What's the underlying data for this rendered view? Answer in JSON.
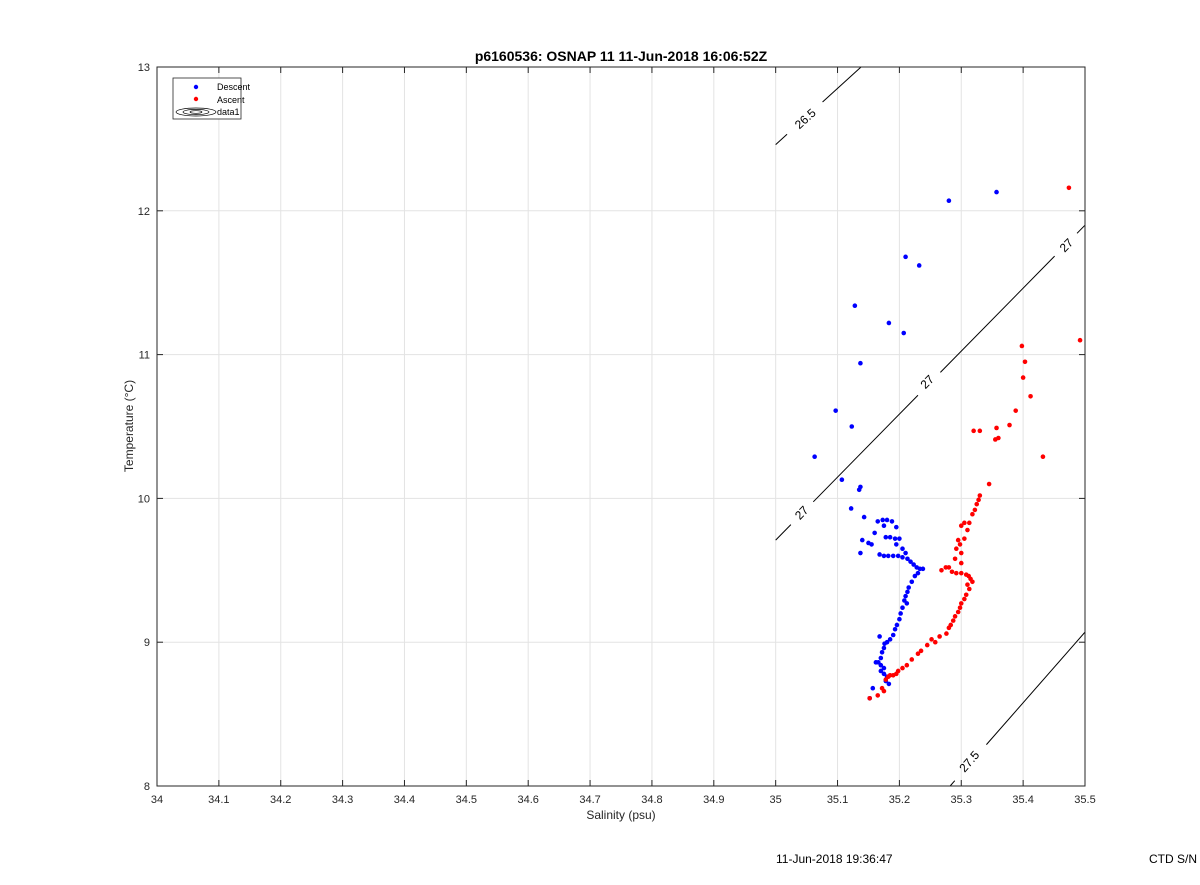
{
  "chart_data": {
    "type": "scatter",
    "title": "p6160536: OSNAP 11 11-Jun-2018 16:06:52Z",
    "xlabel": "Salinity (psu)",
    "ylabel": "Temperature (°C)",
    "xlim": [
      34,
      35.5
    ],
    "ylim": [
      8,
      13
    ],
    "xticks": [
      34,
      34.1,
      34.2,
      34.3,
      34.4,
      34.5,
      34.6,
      34.7,
      34.8,
      34.9,
      35,
      35.1,
      35.2,
      35.3,
      35.4,
      35.5
    ],
    "xtick_labels": [
      "34",
      "34.1",
      "34.2",
      "34.3",
      "34.4",
      "34.5",
      "34.6",
      "34.7",
      "34.8",
      "34.9",
      "35",
      "35.1",
      "35.2",
      "35.3",
      "35.4",
      "35.5"
    ],
    "yticks": [
      8,
      9,
      10,
      11,
      12,
      13
    ],
    "ytick_labels": [
      "8",
      "9",
      "10",
      "11",
      "12",
      "13"
    ],
    "grid": true,
    "legend": {
      "placement": "top-left",
      "entries": [
        "Descent",
        "Ascent",
        "data1"
      ]
    },
    "series": [
      {
        "name": "Descent",
        "color": "#0000ff",
        "points": [
          [
            35.357,
            12.13
          ],
          [
            35.28,
            12.07
          ],
          [
            35.21,
            11.68
          ],
          [
            35.232,
            11.62
          ],
          [
            35.128,
            11.34
          ],
          [
            35.183,
            11.22
          ],
          [
            35.207,
            11.15
          ],
          [
            35.137,
            10.94
          ],
          [
            35.097,
            10.61
          ],
          [
            35.123,
            10.5
          ],
          [
            35.063,
            10.29
          ],
          [
            35.107,
            10.13
          ],
          [
            35.137,
            10.08
          ],
          [
            35.135,
            10.06
          ],
          [
            35.122,
            9.93
          ],
          [
            35.143,
            9.87
          ],
          [
            35.165,
            9.84
          ],
          [
            35.173,
            9.85
          ],
          [
            35.18,
            9.85
          ],
          [
            35.188,
            9.84
          ],
          [
            35.175,
            9.81
          ],
          [
            35.195,
            9.8
          ],
          [
            35.16,
            9.76
          ],
          [
            35.178,
            9.73
          ],
          [
            35.185,
            9.73
          ],
          [
            35.193,
            9.72
          ],
          [
            35.2,
            9.72
          ],
          [
            35.14,
            9.71
          ],
          [
            35.15,
            9.69
          ],
          [
            35.155,
            9.68
          ],
          [
            35.195,
            9.68
          ],
          [
            35.205,
            9.65
          ],
          [
            35.21,
            9.62
          ],
          [
            35.137,
            9.62
          ],
          [
            35.168,
            9.61
          ],
          [
            35.175,
            9.6
          ],
          [
            35.182,
            9.6
          ],
          [
            35.19,
            9.6
          ],
          [
            35.198,
            9.6
          ],
          [
            35.205,
            9.59
          ],
          [
            35.213,
            9.58
          ],
          [
            35.218,
            9.56
          ],
          [
            35.223,
            9.54
          ],
          [
            35.228,
            9.52
          ],
          [
            35.233,
            9.51
          ],
          [
            35.238,
            9.51
          ],
          [
            35.23,
            9.48
          ],
          [
            35.225,
            9.46
          ],
          [
            35.22,
            9.42
          ],
          [
            35.215,
            9.38
          ],
          [
            35.213,
            9.35
          ],
          [
            35.21,
            9.32
          ],
          [
            35.208,
            9.29
          ],
          [
            35.212,
            9.27
          ],
          [
            35.205,
            9.24
          ],
          [
            35.202,
            9.2
          ],
          [
            35.2,
            9.16
          ],
          [
            35.196,
            9.12
          ],
          [
            35.193,
            9.09
          ],
          [
            35.19,
            9.05
          ],
          [
            35.185,
            9.02
          ],
          [
            35.18,
            9.0
          ],
          [
            35.176,
            8.99
          ],
          [
            35.168,
            9.04
          ],
          [
            35.175,
            8.96
          ],
          [
            35.172,
            8.93
          ],
          [
            35.17,
            8.89
          ],
          [
            35.166,
            8.86
          ],
          [
            35.162,
            8.86
          ],
          [
            35.17,
            8.84
          ],
          [
            35.175,
            8.82
          ],
          [
            35.17,
            8.8
          ],
          [
            35.175,
            8.78
          ],
          [
            35.18,
            8.76
          ],
          [
            35.178,
            8.73
          ],
          [
            35.183,
            8.71
          ],
          [
            35.157,
            8.68
          ],
          [
            35.152,
            8.61
          ]
        ]
      },
      {
        "name": "Ascent",
        "color": "#ff0000",
        "points": [
          [
            35.474,
            12.16
          ],
          [
            35.492,
            11.1
          ],
          [
            35.398,
            11.06
          ],
          [
            35.403,
            10.95
          ],
          [
            35.4,
            10.84
          ],
          [
            35.412,
            10.71
          ],
          [
            35.388,
            10.61
          ],
          [
            35.378,
            10.51
          ],
          [
            35.357,
            10.49
          ],
          [
            35.33,
            10.47
          ],
          [
            35.32,
            10.47
          ],
          [
            35.36,
            10.42
          ],
          [
            35.355,
            10.41
          ],
          [
            35.432,
            10.29
          ],
          [
            35.345,
            10.1
          ],
          [
            35.33,
            10.02
          ],
          [
            35.328,
            9.99
          ],
          [
            35.325,
            9.96
          ],
          [
            35.322,
            9.92
          ],
          [
            35.318,
            9.89
          ],
          [
            35.313,
            9.83
          ],
          [
            35.305,
            9.83
          ],
          [
            35.3,
            9.81
          ],
          [
            35.31,
            9.78
          ],
          [
            35.305,
            9.72
          ],
          [
            35.295,
            9.71
          ],
          [
            35.298,
            9.68
          ],
          [
            35.292,
            9.65
          ],
          [
            35.3,
            9.62
          ],
          [
            35.29,
            9.58
          ],
          [
            35.3,
            9.55
          ],
          [
            35.275,
            9.52
          ],
          [
            35.28,
            9.52
          ],
          [
            35.268,
            9.5
          ],
          [
            35.285,
            9.49
          ],
          [
            35.292,
            9.48
          ],
          [
            35.3,
            9.48
          ],
          [
            35.308,
            9.47
          ],
          [
            35.312,
            9.46
          ],
          [
            35.315,
            9.44
          ],
          [
            35.318,
            9.42
          ],
          [
            35.31,
            9.4
          ],
          [
            35.313,
            9.37
          ],
          [
            35.308,
            9.33
          ],
          [
            35.305,
            9.3
          ],
          [
            35.3,
            9.27
          ],
          [
            35.298,
            9.24
          ],
          [
            35.295,
            9.21
          ],
          [
            35.29,
            9.18
          ],
          [
            35.287,
            9.15
          ],
          [
            35.283,
            9.12
          ],
          [
            35.28,
            9.1
          ],
          [
            35.276,
            9.06
          ],
          [
            35.265,
            9.04
          ],
          [
            35.258,
            9.0
          ],
          [
            35.252,
            9.02
          ],
          [
            35.245,
            8.98
          ],
          [
            35.235,
            8.94
          ],
          [
            35.23,
            8.92
          ],
          [
            35.22,
            8.88
          ],
          [
            35.212,
            8.84
          ],
          [
            35.205,
            8.82
          ],
          [
            35.198,
            8.8
          ],
          [
            35.195,
            8.78
          ],
          [
            35.19,
            8.77
          ],
          [
            35.185,
            8.77
          ],
          [
            35.182,
            8.76
          ],
          [
            35.178,
            8.74
          ],
          [
            35.172,
            8.68
          ],
          [
            35.175,
            8.66
          ],
          [
            35.165,
            8.63
          ],
          [
            35.152,
            8.61
          ]
        ]
      }
    ],
    "contours": [
      {
        "label": "26.5",
        "points": [
          [
            35.0,
            12.46
          ],
          [
            35.138,
            13.0
          ]
        ],
        "label_at": [
          [
            35.048,
            12.64
          ]
        ]
      },
      {
        "label": "27",
        "points": [
          [
            35.0,
            9.71
          ],
          [
            35.5,
            11.9
          ]
        ],
        "label_at": [
          [
            35.042,
            9.9
          ],
          [
            35.245,
            10.81
          ],
          [
            35.47,
            11.76
          ]
        ]
      },
      {
        "label": "27.5",
        "points": [
          [
            35.282,
            8.0
          ],
          [
            35.5,
            9.07
          ]
        ],
        "label_at": [
          [
            35.313,
            8.17
          ]
        ]
      }
    ]
  },
  "footer": {
    "timestamp": "11-Jun-2018 19:36:47",
    "ctd_label": "CTD S/N"
  }
}
